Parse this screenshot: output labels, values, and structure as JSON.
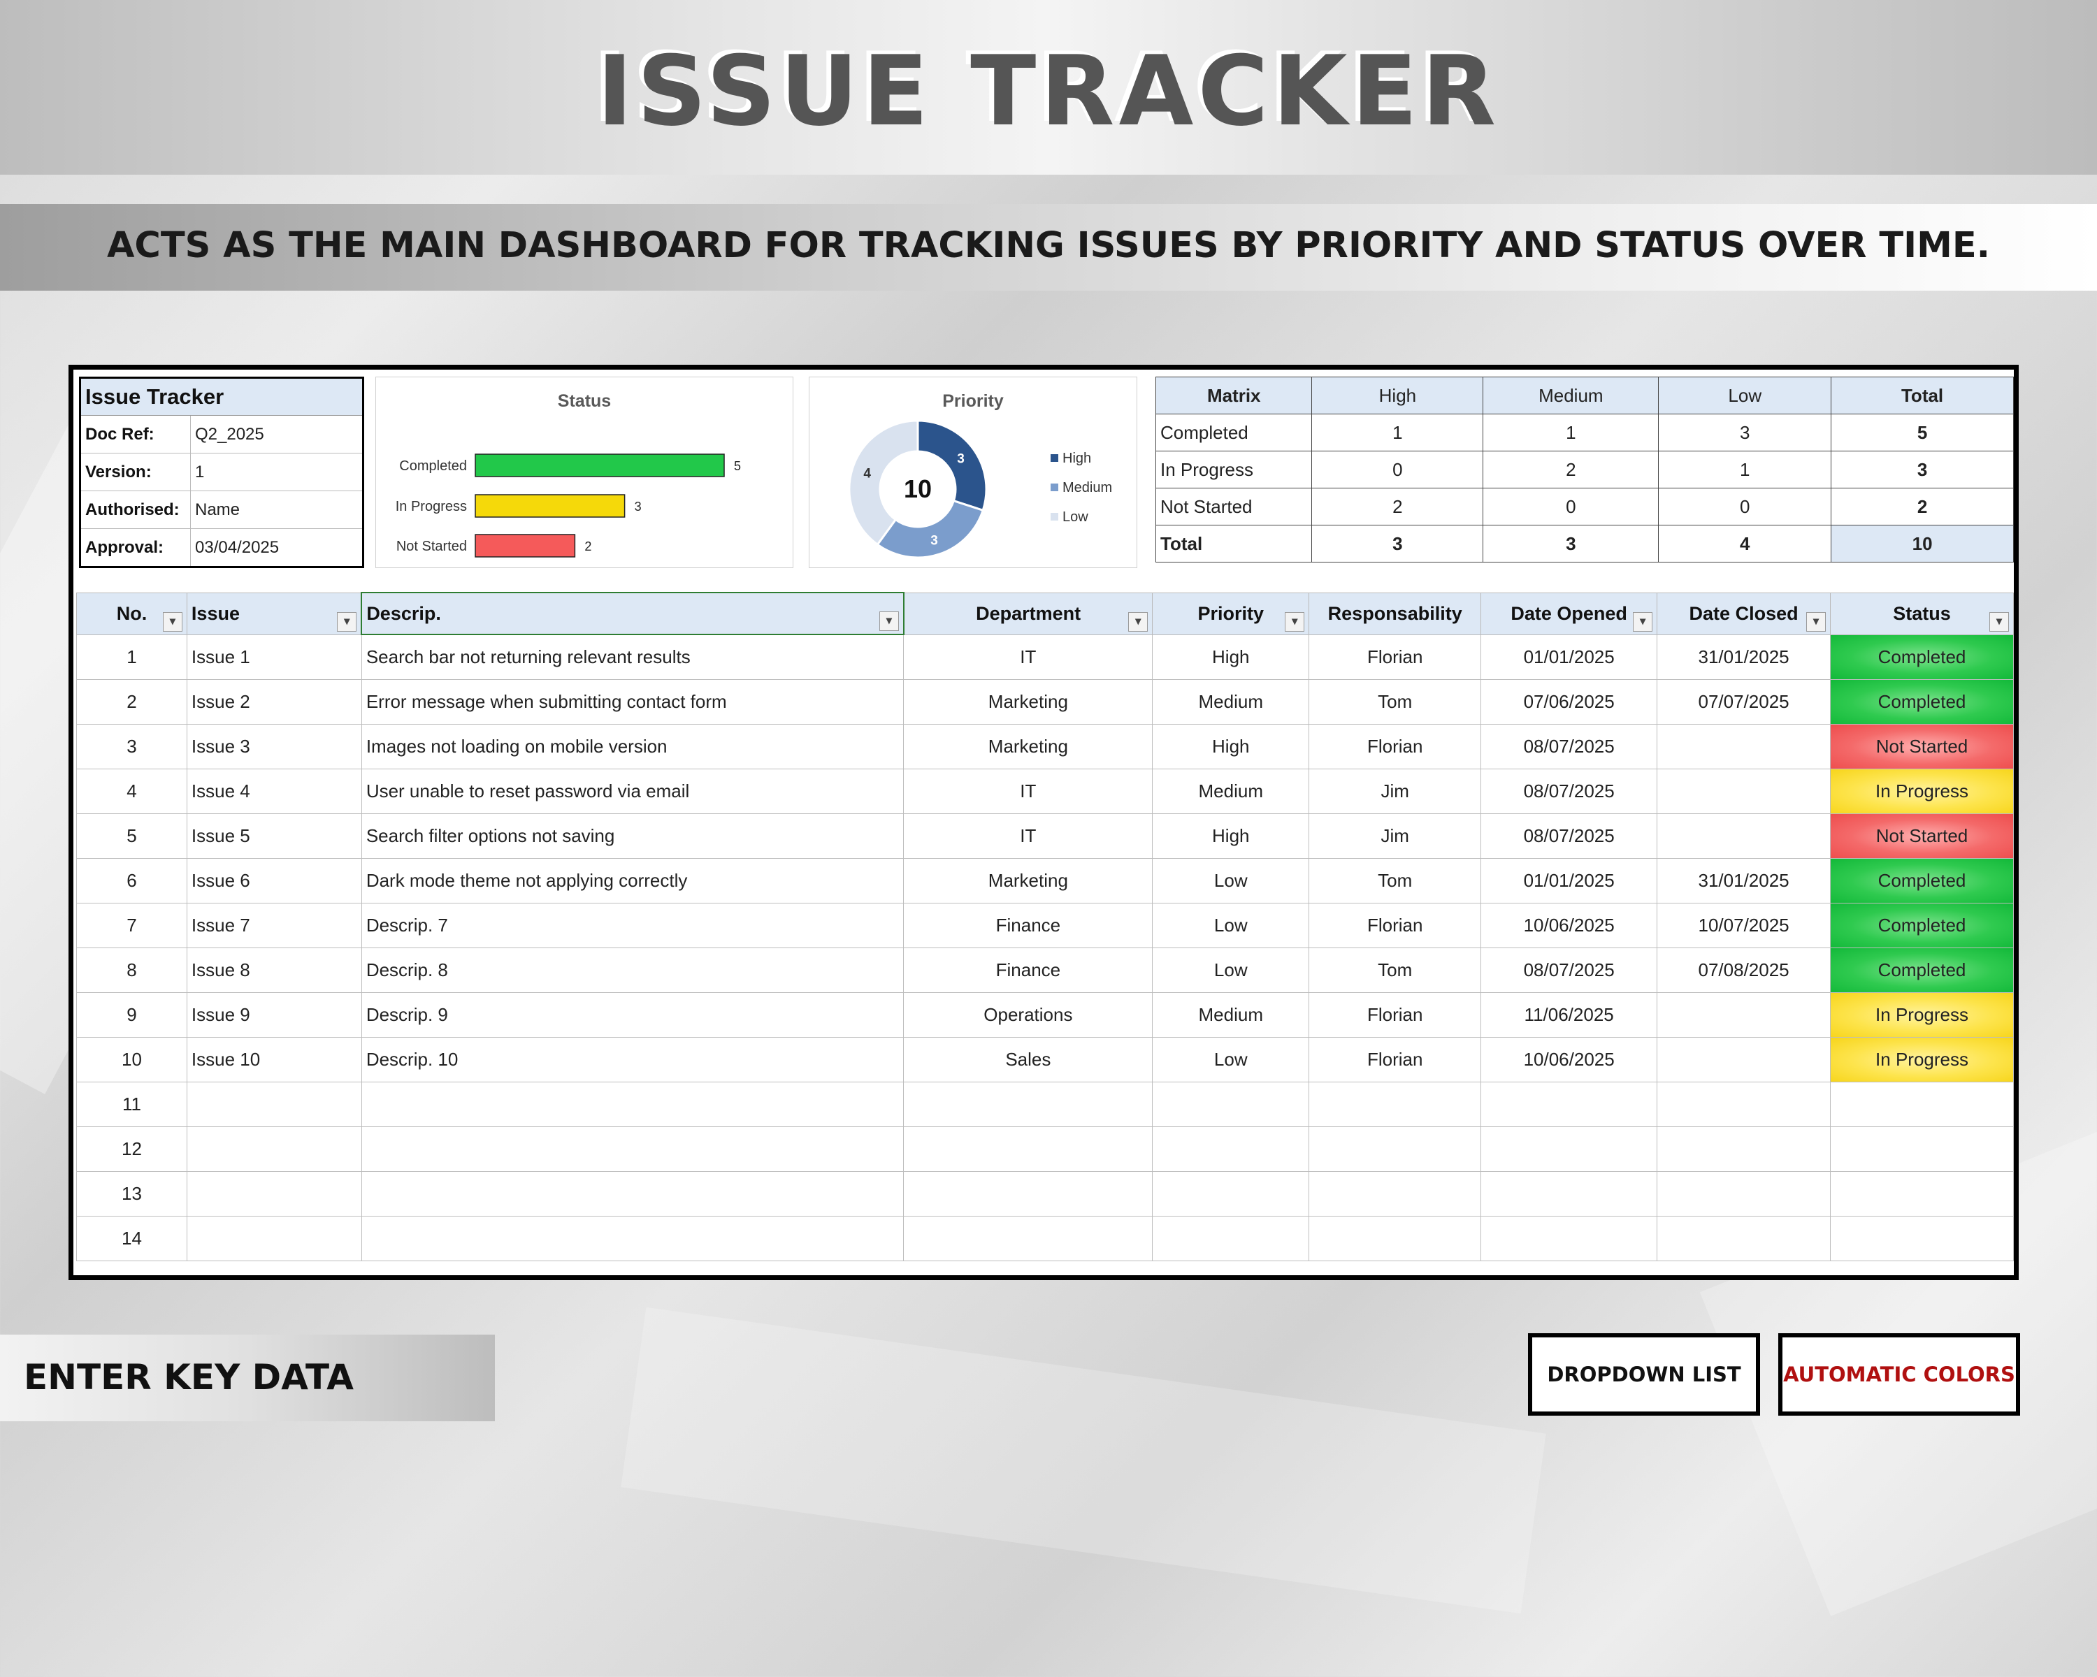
{
  "header": {
    "title": "ISSUE TRACKER",
    "subtitle": "ACTS AS THE MAIN DASHBOARD FOR TRACKING ISSUES BY PRIORITY AND STATUS OVER TIME."
  },
  "info": {
    "title": "Issue Tracker",
    "rows": [
      {
        "key": "Doc Ref:",
        "value": "Q2_2025"
      },
      {
        "key": "Version:",
        "value": "1"
      },
      {
        "key": "Authorised:",
        "value": "Name"
      },
      {
        "key": "Approval:",
        "value": "03/04/2025"
      }
    ]
  },
  "chart_data": [
    {
      "type": "bar",
      "title": "Status",
      "orientation": "horizontal",
      "categories": [
        "Completed",
        "In Progress",
        "Not Started"
      ],
      "values": [
        5,
        3,
        2
      ],
      "colors": [
        "#22c84a",
        "#f5d90a",
        "#f55a5a"
      ],
      "xlim": [
        0,
        5
      ]
    },
    {
      "type": "pie",
      "title": "Priority",
      "donut": true,
      "center_label": "10",
      "categories": [
        "High",
        "Medium",
        "Low"
      ],
      "values": [
        3,
        3,
        4
      ],
      "colors": [
        "#2b548c",
        "#7b9dcc",
        "#d9e2ef"
      ],
      "legend": "right"
    }
  ],
  "matrix": {
    "corner": "Matrix",
    "cols": [
      "High",
      "Medium",
      "Low",
      "Total"
    ],
    "rows": [
      {
        "label": "Completed",
        "values": [
          "1",
          "1",
          "3",
          "5"
        ]
      },
      {
        "label": "In Progress",
        "values": [
          "0",
          "2",
          "1",
          "3"
        ]
      },
      {
        "label": "Not Started",
        "values": [
          "2",
          "0",
          "0",
          "2"
        ]
      }
    ],
    "total": {
      "label": "Total",
      "values": [
        "3",
        "3",
        "4",
        "10"
      ]
    }
  },
  "table": {
    "headers": [
      "No.",
      "Issue",
      "Descrip.",
      "Department",
      "Priority",
      "Responsability",
      "Date Opened",
      "Date Closed",
      "Status"
    ],
    "rows": [
      [
        "1",
        "Issue 1",
        "Search bar not returning relevant results",
        "IT",
        "High",
        "Florian",
        "01/01/2025",
        "31/01/2025",
        "Completed"
      ],
      [
        "2",
        "Issue 2",
        "Error message when submitting contact form",
        "Marketing",
        "Medium",
        "Tom",
        "07/06/2025",
        "07/07/2025",
        "Completed"
      ],
      [
        "3",
        "Issue 3",
        "Images not loading on mobile version",
        "Marketing",
        "High",
        "Florian",
        "08/07/2025",
        "",
        "Not Started"
      ],
      [
        "4",
        "Issue 4",
        "User unable to reset password via email",
        "IT",
        "Medium",
        "Jim",
        "08/07/2025",
        "",
        "In Progress"
      ],
      [
        "5",
        "Issue 5",
        "Search filter options not saving",
        "IT",
        "High",
        "Jim",
        "08/07/2025",
        "",
        "Not Started"
      ],
      [
        "6",
        "Issue 6",
        "Dark mode theme not applying correctly",
        "Marketing",
        "Low",
        "Tom",
        "01/01/2025",
        "31/01/2025",
        "Completed"
      ],
      [
        "7",
        "Issue 7",
        "Descrip. 7",
        "Finance",
        "Low",
        "Florian",
        "10/06/2025",
        "10/07/2025",
        "Completed"
      ],
      [
        "8",
        "Issue 8",
        "Descrip. 8",
        "Finance",
        "Low",
        "Tom",
        "08/07/2025",
        "07/08/2025",
        "Completed"
      ],
      [
        "9",
        "Issue 9",
        "Descrip. 9",
        "Operations",
        "Medium",
        "Florian",
        "11/06/2025",
        "",
        "In Progress"
      ],
      [
        "10",
        "Issue 10",
        "Descrip. 10",
        "Sales",
        "Low",
        "Florian",
        "10/06/2025",
        "",
        "In Progress"
      ],
      [
        "11",
        "",
        "",
        "",
        "",
        "",
        "",
        "",
        ""
      ],
      [
        "12",
        "",
        "",
        "",
        "",
        "",
        "",
        "",
        ""
      ],
      [
        "13",
        "",
        "",
        "",
        "",
        "",
        "",
        "",
        ""
      ],
      [
        "14",
        "",
        "",
        "",
        "",
        "",
        "",
        "",
        ""
      ]
    ]
  },
  "footer": {
    "enter_label": "ENTER KEY DATA",
    "dropdown_label": "DROPDOWN LIST",
    "auto_colors_label": "AUTOMATIC COLORS",
    "auto_colors_color": "#b01010"
  },
  "icons": {
    "filter": "filter-dropdown-icon"
  }
}
